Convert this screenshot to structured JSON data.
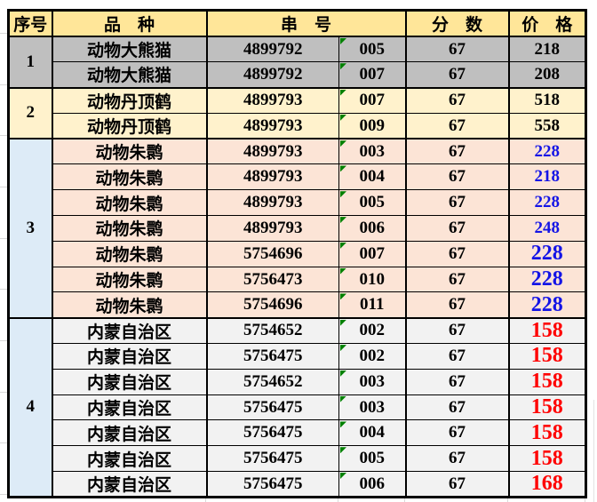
{
  "colors": {
    "header_bg": "#FFE699",
    "group1_bg": "#BFBFBF",
    "group2_bg": "#FFF2CC",
    "group3_bg": "#FCE4D6",
    "group4_bg": "#F2F2F2",
    "index_blue_bg": "#DDEBF7",
    "price_black": "#000000",
    "price_blue": "#1414E6",
    "price_red": "#FF0000",
    "flag_green": "#008000",
    "border_black": "#000000"
  },
  "table": {
    "headers": {
      "no": "序号",
      "variety": "品　种",
      "serial": "串　号",
      "score": "分　数",
      "price": "价　格"
    },
    "groups": [
      {
        "no": "1",
        "bg": "#BFBFBF",
        "no_bg": "#BFBFBF",
        "price_color": "#000000",
        "rows": [
          {
            "variety": "动物大熊猫",
            "serial": "4899792",
            "sub": "005",
            "score": "67",
            "price": "218",
            "large_price": false
          },
          {
            "variety": "动物大熊猫",
            "serial": "4899792",
            "sub": "007",
            "score": "67",
            "price": "208",
            "large_price": false
          }
        ]
      },
      {
        "no": "2",
        "bg": "#FFF2CC",
        "no_bg": "#FFF2CC",
        "price_color": "#000000",
        "rows": [
          {
            "variety": "动物丹顶鹤",
            "serial": "4899793",
            "sub": "007",
            "score": "67",
            "price": "518",
            "large_price": false
          },
          {
            "variety": "动物丹顶鹤",
            "serial": "4899793",
            "sub": "009",
            "score": "67",
            "price": "558",
            "large_price": false
          }
        ]
      },
      {
        "no": "3",
        "bg": "#FCE4D6",
        "no_bg": "#DDEBF7",
        "price_color": "#1414E6",
        "rows": [
          {
            "variety": "动物朱鹮",
            "serial": "4899793",
            "sub": "003",
            "score": "67",
            "price": "228",
            "large_price": false
          },
          {
            "variety": "动物朱鹮",
            "serial": "4899793",
            "sub": "004",
            "score": "67",
            "price": "218",
            "large_price": false
          },
          {
            "variety": "动物朱鹮",
            "serial": "4899793",
            "sub": "005",
            "score": "67",
            "price": "228",
            "large_price": false
          },
          {
            "variety": "动物朱鹮",
            "serial": "4899793",
            "sub": "006",
            "score": "67",
            "price": "248",
            "large_price": false
          },
          {
            "variety": "动物朱鹮",
            "serial": "5754696",
            "sub": "007",
            "score": "67",
            "price": "228",
            "large_price": true
          },
          {
            "variety": "动物朱鹮",
            "serial": "5756473",
            "sub": "010",
            "score": "67",
            "price": "228",
            "large_price": true
          },
          {
            "variety": "动物朱鹮",
            "serial": "5754696",
            "sub": "011",
            "score": "67",
            "price": "228",
            "large_price": true
          }
        ]
      },
      {
        "no": "4",
        "bg": "#F2F2F2",
        "no_bg": "#DDEBF7",
        "price_color": "#FF0000",
        "rows": [
          {
            "variety": "内蒙自治区",
            "serial": "5754652",
            "sub": "002",
            "score": "67",
            "price": "158",
            "large_price": true
          },
          {
            "variety": "内蒙自治区",
            "serial": "5756475",
            "sub": "002",
            "score": "67",
            "price": "158",
            "large_price": true
          },
          {
            "variety": "内蒙自治区",
            "serial": "5754652",
            "sub": "003",
            "score": "67",
            "price": "158",
            "large_price": true
          },
          {
            "variety": "内蒙自治区",
            "serial": "5756475",
            "sub": "003",
            "score": "67",
            "price": "158",
            "large_price": true
          },
          {
            "variety": "内蒙自治区",
            "serial": "5756475",
            "sub": "004",
            "score": "67",
            "price": "158",
            "large_price": true
          },
          {
            "variety": "内蒙自治区",
            "serial": "5756475",
            "sub": "005",
            "score": "67",
            "price": "158",
            "large_price": true
          },
          {
            "variety": "内蒙自治区",
            "serial": "5756475",
            "sub": "006",
            "score": "67",
            "price": "168",
            "large_price": true
          }
        ]
      }
    ]
  }
}
